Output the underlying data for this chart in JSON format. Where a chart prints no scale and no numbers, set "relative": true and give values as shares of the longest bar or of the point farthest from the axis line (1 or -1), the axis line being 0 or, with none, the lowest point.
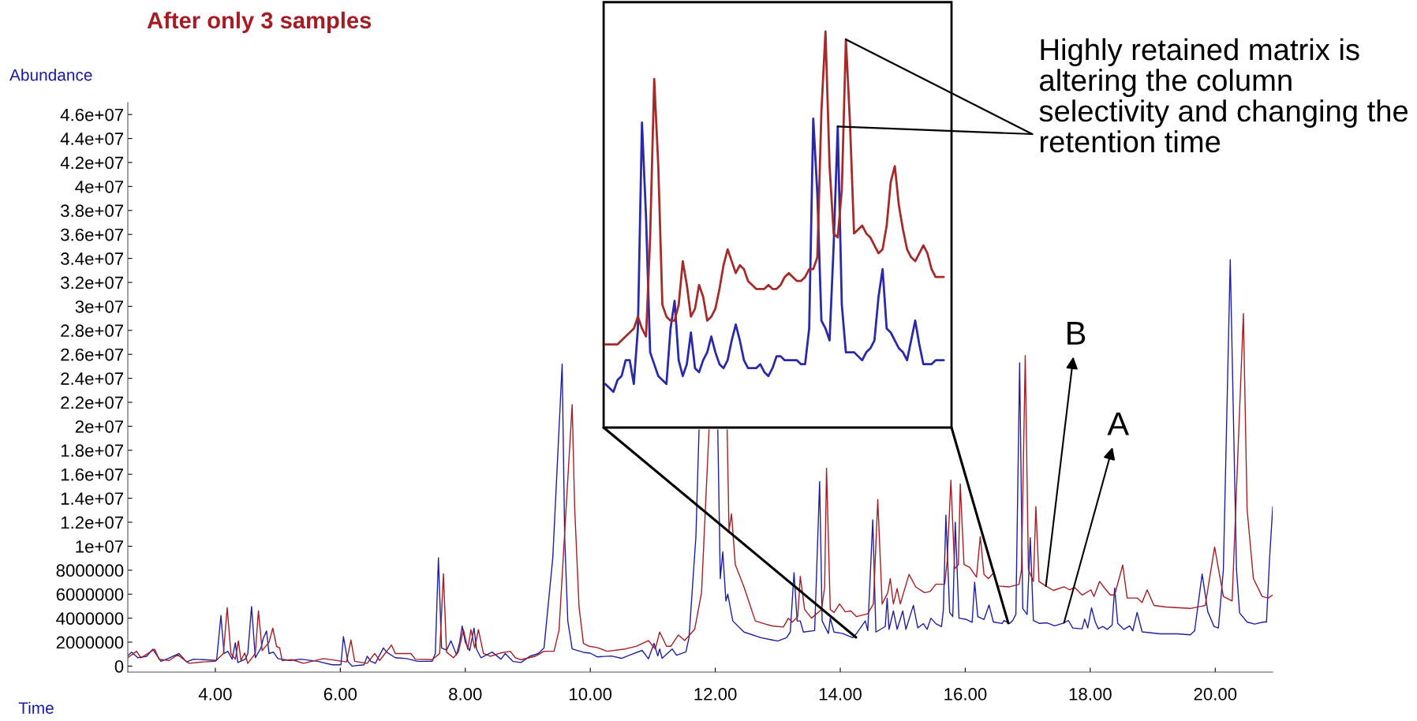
{
  "chart_data": [
    {
      "type": "line",
      "title": "After only 3 samples",
      "xlabel": "Time",
      "ylabel": "Abundance",
      "xlim": [
        2.6,
        20.92
      ],
      "ylim": [
        -500000,
        47000000
      ],
      "xticks": [
        {
          "value": 4,
          "label": "4.00"
        },
        {
          "value": 6,
          "label": "6.00"
        },
        {
          "value": 8,
          "label": "8.00"
        },
        {
          "value": 10,
          "label": "10.00"
        },
        {
          "value": 12,
          "label": "12.00"
        },
        {
          "value": 14,
          "label": "14.00"
        },
        {
          "value": 16,
          "label": "16.00"
        },
        {
          "value": 18,
          "label": "18.00"
        },
        {
          "value": 20,
          "label": "20.00"
        }
      ],
      "yticks": [
        0,
        2000000,
        4000000,
        6000000,
        8000000,
        {
          "value": 10000000,
          "label": "1e+07"
        },
        {
          "value": 12000000,
          "label": "1.2e+07"
        },
        {
          "value": 14000000,
          "label": "1.4e+07"
        },
        {
          "value": 16000000,
          "label": "1.6e+07"
        },
        {
          "value": 18000000,
          "label": "1.8e+07"
        },
        {
          "value": 20000000,
          "label": "2e+07"
        },
        {
          "value": 22000000,
          "label": "2.2e+07"
        },
        {
          "value": 24000000,
          "label": "2.4e+07"
        },
        {
          "value": 26000000,
          "label": "2.6e+07"
        },
        {
          "value": 28000000,
          "label": "2.8e+07"
        },
        {
          "value": 30000000,
          "label": "3e+07"
        },
        {
          "value": 32000000,
          "label": "3.2e+07"
        },
        {
          "value": 34000000,
          "label": "3.4e+07"
        },
        {
          "value": 36000000,
          "label": "3.6e+07"
        },
        {
          "value": 38000000,
          "label": "3.8e+07"
        },
        {
          "value": 40000000,
          "label": "4e+07"
        },
        {
          "value": 42000000,
          "label": "4.2e+07"
        },
        {
          "value": 44000000,
          "label": "4.4e+07"
        },
        {
          "value": 46000000,
          "label": "4.6e+07"
        }
      ],
      "legend": false,
      "grid": false,
      "marker": "none",
      "line_style": "solid",
      "series": [
        {
          "name": "A",
          "color": "#1f1f9e",
          "x": [
            2.6,
            2.66,
            2.76,
            2.9,
            3.0,
            3.13,
            3.24,
            3.42,
            3.54,
            3.65,
            3.81,
            4.02,
            4.09,
            4.14,
            4.2,
            4.27,
            4.32,
            4.36,
            4.48,
            4.52,
            4.58,
            4.64,
            4.73,
            4.77,
            4.82,
            4.86,
            4.93,
            5.0,
            5.19,
            5.37,
            5.64,
            5.87,
            6.01,
            6.05,
            6.12,
            6.19,
            6.38,
            6.43,
            6.49,
            6.56,
            6.69,
            6.74,
            6.88,
            7.06,
            7.24,
            7.47,
            7.52,
            7.57,
            7.62,
            7.7,
            7.77,
            7.86,
            7.91,
            7.95,
            8.0,
            8.07,
            8.14,
            8.18,
            8.25,
            8.43,
            8.57,
            8.64,
            8.76,
            8.89,
            9.03,
            9.17,
            9.26,
            9.4,
            9.55,
            9.59,
            9.64,
            9.71,
            9.89,
            10.0,
            10.11,
            10.34,
            10.5,
            10.65,
            10.83,
            10.93,
            11.02,
            11.08,
            11.11,
            11.15,
            11.31,
            11.38,
            11.53,
            11.58,
            11.69,
            11.74,
            11.9,
            12.04,
            12.08,
            12.12,
            12.17,
            12.2,
            12.28,
            12.46,
            12.73,
            12.91,
            13.0,
            13.14,
            13.2,
            13.26,
            13.31,
            13.36,
            13.41,
            13.59,
            13.67,
            13.71,
            13.81,
            13.84,
            13.9,
            14.04,
            14.2,
            14.26,
            14.4,
            14.44,
            14.52,
            14.57,
            14.72,
            14.75,
            14.78,
            14.85,
            14.91,
            15.0,
            15.05,
            15.17,
            15.24,
            15.33,
            15.39,
            15.45,
            15.53,
            15.62,
            15.65,
            15.69,
            15.75,
            15.8,
            15.84,
            15.9,
            16.02,
            16.11,
            16.15,
            16.2,
            16.3,
            16.38,
            16.45,
            16.59,
            16.62,
            16.71,
            16.76,
            16.81,
            16.87,
            16.92,
            16.99,
            17.04,
            17.09,
            17.19,
            17.31,
            17.43,
            17.58,
            17.65,
            17.72,
            17.87,
            17.91,
            17.96,
            18.02,
            18.08,
            18.13,
            18.2,
            18.27,
            18.35,
            18.39,
            18.44,
            18.54,
            18.63,
            18.68,
            18.75,
            18.83,
            19.12,
            19.4,
            19.6,
            19.67,
            19.79,
            19.88,
            19.98,
            20.05,
            20.13,
            20.24,
            20.34,
            20.39,
            20.51,
            20.63,
            20.77,
            20.82,
            20.87,
            20.92
          ],
          "values": [
            870000,
            1170000,
            700000,
            820000,
            1410000,
            400000,
            630000,
            1050000,
            350000,
            580000,
            540000,
            470000,
            4220000,
            1050000,
            1240000,
            580000,
            1940000,
            300000,
            580000,
            1050000,
            4970000,
            700000,
            1520000,
            2350000,
            2930000,
            1050000,
            1170000,
            630000,
            470000,
            580000,
            400000,
            110000,
            110000,
            2460000,
            400000,
            0,
            110000,
            820000,
            400000,
            230000,
            1520000,
            1170000,
            700000,
            630000,
            400000,
            400000,
            1050000,
            9030000,
            1520000,
            1330000,
            2110000,
            940000,
            1990000,
            3350000,
            1990000,
            1290000,
            3170000,
            1410000,
            700000,
            1170000,
            580000,
            1050000,
            400000,
            300000,
            820000,
            1050000,
            1520000,
            9030000,
            25200000,
            10800000,
            3770000,
            1430000,
            1150000,
            1080000,
            770000,
            840000,
            650000,
            960000,
            1310000,
            610000,
            1900000,
            840000,
            1430000,
            650000,
            1430000,
            910000,
            1190000,
            2370000,
            10800000,
            19700000,
            null,
            19700000,
            7300000,
            9530000,
            5420000,
            6000000,
            3770000,
            2840000,
            2370000,
            2180000,
            2090000,
            2370000,
            2840000,
            7800000,
            3770000,
            3770000,
            2840000,
            2960000,
            15400000,
            3770000,
            2720000,
            4000000,
            2840000,
            2720000,
            2370000,
            2720000,
            3770000,
            2960000,
            12200000,
            2840000,
            3300000,
            5650000,
            3070000,
            4600000,
            3070000,
            4600000,
            3070000,
            5070000,
            3190000,
            3540000,
            3070000,
            4000000,
            3540000,
            3300000,
            4700000,
            12600000,
            4480000,
            4130000,
            12000000,
            4000000,
            3890000,
            3660000,
            7000000,
            4130000,
            3890000,
            5100000,
            3680000,
            3560000,
            3810000,
            3560000,
            3810000,
            4310000,
            25300000,
            4810000,
            4310000,
            10700000,
            3810000,
            3560000,
            3610000,
            3360000,
            3610000,
            3810000,
            3180000,
            3110000,
            3930000,
            3180000,
            4860000,
            3680000,
            3110000,
            3310000,
            3060000,
            3430000,
            6510000,
            3560000,
            3060000,
            3360000,
            2940000,
            4480000,
            2860000,
            2690000,
            2690000,
            2610000,
            2940000,
            7680000,
            4560000,
            3310000,
            3180000,
            8060000,
            33900000,
            8060000,
            4430000,
            3680000,
            3510000,
            3680000,
            3680000,
            9060000,
            13300000
          ]
        },
        {
          "name": "B",
          "color": "#a51c24",
          "x": [
            2.6,
            2.74,
            2.81,
            3.03,
            3.1,
            3.26,
            3.4,
            3.58,
            3.81,
            4.0,
            4.13,
            4.19,
            4.25,
            4.32,
            4.37,
            4.41,
            4.47,
            4.52,
            4.64,
            4.69,
            4.75,
            4.86,
            4.92,
            4.98,
            5.03,
            5.07,
            5.23,
            5.41,
            5.73,
            6.1,
            6.17,
            6.23,
            6.43,
            6.55,
            6.63,
            6.82,
            6.88,
            7.13,
            7.2,
            7.47,
            7.59,
            7.65,
            7.7,
            7.81,
            7.89,
            7.97,
            8.04,
            8.09,
            8.15,
            8.21,
            8.29,
            8.4,
            8.57,
            8.72,
            8.8,
            8.89,
            9.12,
            9.26,
            9.42,
            9.5,
            9.6,
            9.71,
            9.75,
            9.82,
            9.89,
            9.98,
            10.11,
            10.27,
            10.56,
            10.74,
            10.93,
            11.04,
            11.11,
            11.22,
            11.29,
            11.41,
            11.51,
            11.67,
            11.78,
            11.9,
            12.05,
            12.19,
            12.22,
            12.26,
            12.32,
            12.46,
            12.64,
            12.78,
            12.91,
            13.09,
            13.17,
            13.23,
            13.32,
            13.36,
            13.43,
            13.54,
            13.7,
            13.75,
            13.78,
            13.84,
            13.9,
            13.99,
            14.08,
            14.17,
            14.26,
            14.44,
            14.53,
            14.6,
            14.67,
            14.76,
            14.8,
            14.85,
            14.91,
            14.96,
            15.1,
            15.21,
            15.35,
            15.44,
            15.53,
            15.67,
            15.71,
            15.77,
            15.83,
            15.89,
            15.92,
            15.98,
            16.07,
            16.18,
            16.24,
            16.3,
            16.37,
            16.45,
            16.52,
            16.71,
            16.86,
            16.9,
            16.96,
            17.01,
            17.09,
            17.13,
            17.18,
            17.29,
            17.41,
            17.58,
            17.67,
            17.75,
            17.87,
            18.01,
            18.06,
            18.15,
            18.23,
            18.32,
            18.39,
            18.52,
            18.59,
            18.75,
            18.83,
            18.91,
            19.02,
            19.21,
            19.6,
            19.84,
            19.99,
            20.13,
            20.27,
            20.45,
            20.51,
            20.61,
            20.75,
            20.85,
            20.92
          ],
          "values": [
            700000,
            1240000,
            700000,
            1410000,
            580000,
            470000,
            940000,
            230000,
            350000,
            400000,
            1050000,
            4880000,
            1050000,
            580000,
            2110000,
            470000,
            1100000,
            230000,
            1050000,
            4620000,
            1290000,
            1990000,
            3170000,
            1640000,
            1520000,
            470000,
            540000,
            230000,
            630000,
            350000,
            2180000,
            400000,
            230000,
            1050000,
            470000,
            1760000,
            1050000,
            1050000,
            580000,
            540000,
            1050000,
            7700000,
            1170000,
            700000,
            1170000,
            3050000,
            1410000,
            3050000,
            1520000,
            3050000,
            1050000,
            820000,
            1100000,
            1240000,
            700000,
            540000,
            820000,
            1240000,
            1240000,
            3000000,
            12000000,
            21800000,
            13200000,
            4950000,
            1900000,
            1660000,
            1550000,
            1240000,
            1430000,
            1660000,
            2130000,
            1430000,
            2840000,
            1660000,
            1660000,
            2600000,
            2130000,
            3070000,
            6120000,
            19700000,
            null,
            19700000,
            11300000,
            12700000,
            8470000,
            6590000,
            3770000,
            3540000,
            3350000,
            3260000,
            4000000,
            3660000,
            4130000,
            7490000,
            4720000,
            4000000,
            4720000,
            6590000,
            16500000,
            4720000,
            4480000,
            5180000,
            4530000,
            4600000,
            4130000,
            4360000,
            5180000,
            13900000,
            5180000,
            6120000,
            7300000,
            5180000,
            6470000,
            5180000,
            7650000,
            6590000,
            6120000,
            6240000,
            6830000,
            6830000,
            8710000,
            15500000,
            8120000,
            8470000,
            15200000,
            8470000,
            8240000,
            7420000,
            10800000,
            7650000,
            7300000,
            7760000,
            6680000,
            6610000,
            6810000,
            8060000,
            25900000,
            8060000,
            7060000,
            13300000,
            7060000,
            6680000,
            6310000,
            6610000,
            6360000,
            6560000,
            5930000,
            6360000,
            5810000,
            7060000,
            6510000,
            5930000,
            5930000,
            8430000,
            5680000,
            5680000,
            5310000,
            6360000,
            5060000,
            4930000,
            4810000,
            5060000,
            9930000,
            5810000,
            5430000,
            29400000,
            13050000,
            7310000,
            5810000,
            5680000,
            5930000
          ]
        }
      ]
    },
    {
      "type": "line",
      "relative": true,
      "legend": false,
      "grid": false,
      "marker": "none",
      "line_style": "solid",
      "annotations": [
        "Highly retained matrix is altering the column selectivity and changing the retention time"
      ],
      "categories": [
        null,
        null,
        null,
        null,
        null,
        null,
        null,
        null,
        null,
        null,
        null,
        null,
        null,
        null,
        null,
        null,
        null,
        null,
        null,
        null,
        null,
        null,
        null,
        null,
        null,
        null,
        null,
        null,
        null,
        null,
        null,
        null,
        null,
        null,
        null,
        null,
        null,
        null,
        null,
        null,
        null,
        null,
        null,
        null,
        null,
        null,
        null,
        null,
        null,
        null,
        null,
        null,
        null,
        null,
        null,
        null,
        null,
        null,
        null,
        null,
        null,
        null,
        null,
        null,
        null,
        null,
        null,
        null,
        null,
        null,
        null,
        null,
        null,
        null,
        null,
        null,
        null,
        null,
        null,
        null,
        null,
        null,
        null,
        null
      ],
      "series": [
        {
          "color": "#2a2aa8",
          "values": [
            0.11,
            0.1,
            0.09,
            0.12,
            0.13,
            0.17,
            0.17,
            0.11,
            0.25,
            0.77,
            0.53,
            0.19,
            0.16,
            0.13,
            0.12,
            0.11,
            0.25,
            0.32,
            0.17,
            0.13,
            0.16,
            0.24,
            0.15,
            0.14,
            0.17,
            0.19,
            0.23,
            0.19,
            0.16,
            0.15,
            0.17,
            0.22,
            0.26,
            0.22,
            0.17,
            0.15,
            0.15,
            0.15,
            0.16,
            0.14,
            0.13,
            0.15,
            0.18,
            0.18,
            0.17,
            0.17,
            0.17,
            0.17,
            0.16,
            0.16,
            0.25,
            0.78,
            0.59,
            0.27,
            0.25,
            0.22,
            0.46,
            0.76,
            0.31,
            0.19,
            0.19,
            0.19,
            0.18,
            0.17,
            0.19,
            0.2,
            0.22,
            0.33,
            0.4,
            0.25,
            0.24,
            0.22,
            0.2,
            0.19,
            0.17,
            0.22,
            0.27,
            0.21,
            0.16,
            0.16,
            0.16,
            0.17,
            0.17,
            0.17
          ]
        },
        {
          "color": "#a52a2a",
          "values": [
            0.21,
            0.21,
            0.21,
            0.21,
            0.22,
            0.23,
            0.24,
            0.25,
            0.28,
            0.25,
            0.23,
            0.48,
            0.88,
            0.66,
            0.31,
            0.28,
            0.27,
            0.27,
            0.31,
            0.42,
            0.36,
            0.28,
            0.3,
            0.36,
            0.33,
            0.27,
            0.28,
            0.3,
            0.35,
            0.41,
            0.45,
            0.42,
            0.39,
            0.41,
            0.4,
            0.37,
            0.36,
            0.35,
            0.35,
            0.35,
            0.36,
            0.35,
            0.35,
            0.36,
            0.38,
            0.39,
            0.38,
            0.37,
            0.37,
            0.38,
            0.4,
            0.4,
            0.43,
            0.8,
            1.0,
            0.66,
            0.49,
            0.48,
            0.6,
            0.98,
            0.77,
            0.49,
            0.5,
            0.51,
            0.49,
            0.48,
            0.46,
            0.44,
            0.45,
            0.51,
            0.62,
            0.66,
            0.56,
            0.5,
            0.45,
            0.43,
            0.42,
            0.44,
            0.46,
            0.44,
            0.4,
            0.38,
            0.38,
            0.38
          ]
        }
      ]
    }
  ]
}
